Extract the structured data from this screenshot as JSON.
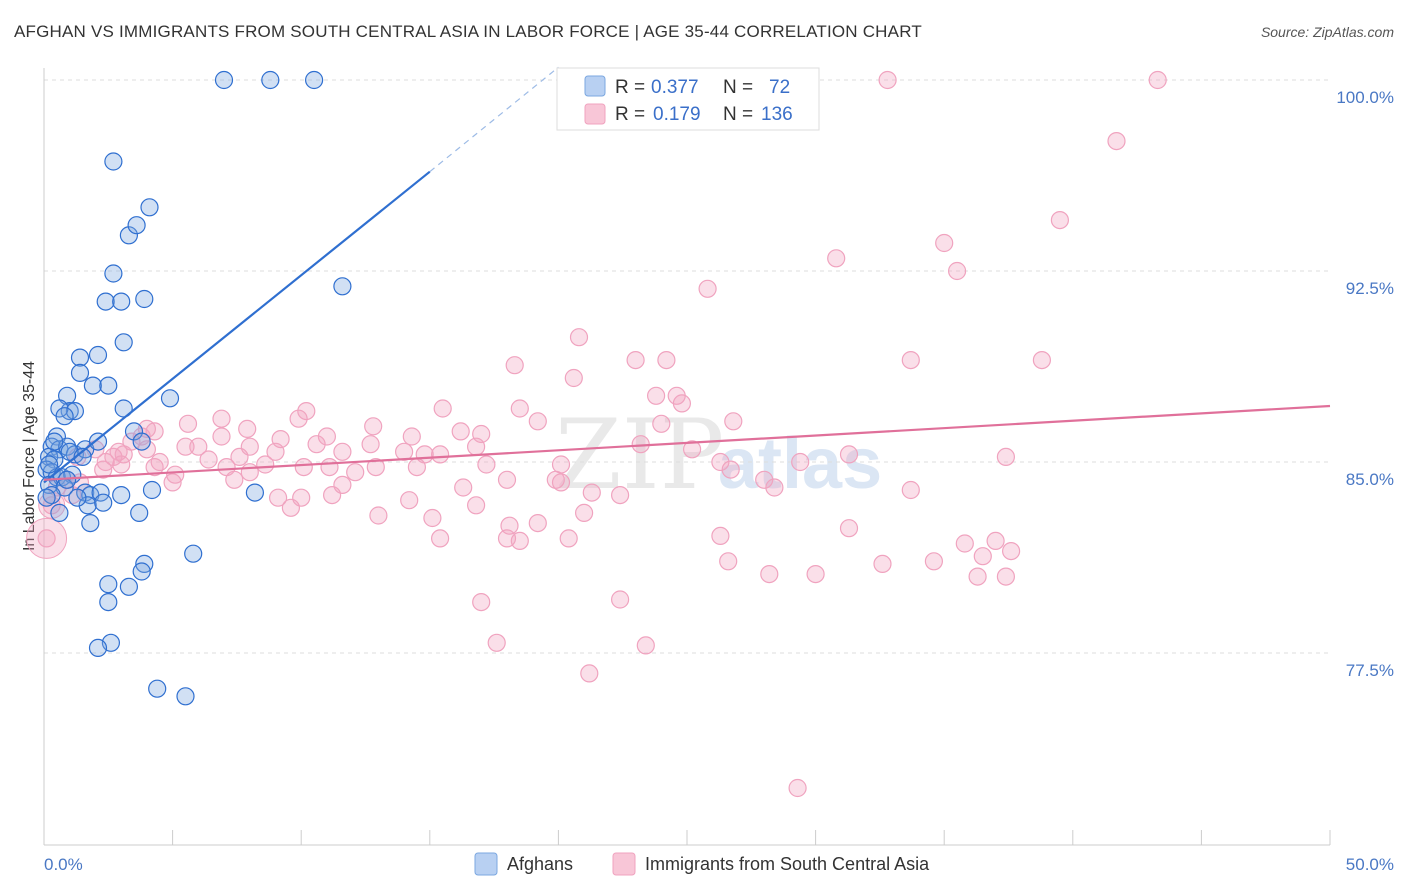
{
  "title": "AFGHAN VS IMMIGRANTS FROM SOUTH CENTRAL ASIA IN LABOR FORCE | AGE 35-44 CORRELATION CHART",
  "source": "Source: ZipAtlas.com",
  "watermark": {
    "part1": "ZIP",
    "part2": "atlas"
  },
  "legend": {
    "row1": {
      "r_label": "R =",
      "r_value": "0.377",
      "n_label": "N =",
      "n_value": "72"
    },
    "row2": {
      "r_label": "R =",
      "r_value": "0.179",
      "n_label": "N =",
      "n_value": "136"
    }
  },
  "bottom_legend": {
    "afghans": "Afghans",
    "immigrants": "Immigrants from South Central Asia"
  },
  "chart_data": {
    "type": "scatter",
    "title": "AFGHAN VS IMMIGRANTS FROM SOUTH CENTRAL ASIA IN LABOR FORCE | AGE 35-44 CORRELATION CHART",
    "xlabel": "",
    "ylabel": "In Labor Force | Age 35-44",
    "x_tick_labels": [
      "0.0%",
      "50.0%"
    ],
    "y_tick_labels": [
      "100.0%",
      "92.5%",
      "85.0%",
      "77.5%"
    ],
    "y_ticks": [
      100.0,
      92.5,
      85.0,
      77.5
    ],
    "xlim": [
      0,
      50
    ],
    "ylim": [
      70.0,
      100.7
    ],
    "grid": true,
    "legend_placement": "top-center",
    "colors": {
      "afghans": "#7ba7e0",
      "afghans_line": "#2f6fd0",
      "immigrants": "#f0a3bf",
      "immigrants_line": "#e0709a"
    },
    "series": [
      {
        "name": "Afghans",
        "R": 0.377,
        "N": 72,
        "trend": {
          "x0": 0.0,
          "y0": 84.2,
          "x1": 15.0,
          "y1": 96.4,
          "dashed_to_x": 20.0,
          "dashed_to_y": 100.5
        },
        "points": [
          [
            7.0,
            100.0
          ],
          [
            8.8,
            100.0
          ],
          [
            10.5,
            100.0
          ],
          [
            2.7,
            96.8
          ],
          [
            4.1,
            95.0
          ],
          [
            3.3,
            93.9
          ],
          [
            3.6,
            94.3
          ],
          [
            2.7,
            92.4
          ],
          [
            2.4,
            91.3
          ],
          [
            3.0,
            91.3
          ],
          [
            3.9,
            91.4
          ],
          [
            11.6,
            91.9
          ],
          [
            3.1,
            89.7
          ],
          [
            2.1,
            89.2
          ],
          [
            1.4,
            89.1
          ],
          [
            1.4,
            88.5
          ],
          [
            1.9,
            88.0
          ],
          [
            2.5,
            88.0
          ],
          [
            0.9,
            87.6
          ],
          [
            1.0,
            87.0
          ],
          [
            1.2,
            87.0
          ],
          [
            0.6,
            87.1
          ],
          [
            3.1,
            87.1
          ],
          [
            4.9,
            87.5
          ],
          [
            0.8,
            86.8
          ],
          [
            0.5,
            86.0
          ],
          [
            3.5,
            86.2
          ],
          [
            3.8,
            85.8
          ],
          [
            0.3,
            85.6
          ],
          [
            0.6,
            85.5
          ],
          [
            0.9,
            85.6
          ],
          [
            1.2,
            85.3
          ],
          [
            1.6,
            85.5
          ],
          [
            2.1,
            85.8
          ],
          [
            0.2,
            85.2
          ],
          [
            0.4,
            85.1
          ],
          [
            1.0,
            85.4
          ],
          [
            1.5,
            85.2
          ],
          [
            0.1,
            84.7
          ],
          [
            0.3,
            84.6
          ],
          [
            0.5,
            84.4
          ],
          [
            0.7,
            84.4
          ],
          [
            1.1,
            84.5
          ],
          [
            0.2,
            84.1
          ],
          [
            0.8,
            84.0
          ],
          [
            0.3,
            83.7
          ],
          [
            0.1,
            83.6
          ],
          [
            1.6,
            83.8
          ],
          [
            1.8,
            83.7
          ],
          [
            2.2,
            83.8
          ],
          [
            3.0,
            83.7
          ],
          [
            4.2,
            83.9
          ],
          [
            8.2,
            83.8
          ],
          [
            1.7,
            83.3
          ],
          [
            2.3,
            83.4
          ],
          [
            0.6,
            83.0
          ],
          [
            3.7,
            83.0
          ],
          [
            1.8,
            82.6
          ],
          [
            5.8,
            81.4
          ],
          [
            3.9,
            81.0
          ],
          [
            3.8,
            80.7
          ],
          [
            3.3,
            80.1
          ],
          [
            2.5,
            80.2
          ],
          [
            2.5,
            79.5
          ],
          [
            2.6,
            77.9
          ],
          [
            2.1,
            77.7
          ],
          [
            4.4,
            76.1
          ],
          [
            5.5,
            75.8
          ],
          [
            0.2,
            84.9
          ],
          [
            0.9,
            84.3
          ],
          [
            1.3,
            83.6
          ],
          [
            0.4,
            85.8
          ]
        ]
      },
      {
        "name": "Immigrants from South Central Asia",
        "R": 0.179,
        "N": 136,
        "trend": {
          "x0": 0.0,
          "y0": 84.3,
          "x1": 50.0,
          "y1": 87.2
        },
        "points": [
          [
            32.8,
            100.0
          ],
          [
            43.3,
            100.0
          ],
          [
            41.7,
            97.6
          ],
          [
            39.5,
            94.5
          ],
          [
            35.0,
            93.6
          ],
          [
            30.8,
            93.0
          ],
          [
            35.5,
            92.5
          ],
          [
            25.8,
            91.8
          ],
          [
            20.8,
            89.9
          ],
          [
            23.0,
            89.0
          ],
          [
            24.2,
            89.0
          ],
          [
            33.7,
            89.0
          ],
          [
            38.8,
            89.0
          ],
          [
            18.3,
            88.8
          ],
          [
            20.6,
            88.3
          ],
          [
            23.8,
            87.6
          ],
          [
            24.6,
            87.6
          ],
          [
            24.8,
            87.3
          ],
          [
            15.5,
            87.1
          ],
          [
            18.5,
            87.1
          ],
          [
            10.2,
            87.0
          ],
          [
            9.9,
            86.7
          ],
          [
            6.9,
            86.7
          ],
          [
            19.2,
            86.6
          ],
          [
            26.8,
            86.6
          ],
          [
            24.0,
            86.5
          ],
          [
            5.6,
            86.5
          ],
          [
            12.8,
            86.4
          ],
          [
            16.2,
            86.2
          ],
          [
            17.0,
            86.1
          ],
          [
            4.0,
            86.3
          ],
          [
            4.3,
            86.2
          ],
          [
            7.9,
            86.3
          ],
          [
            3.8,
            86.0
          ],
          [
            6.9,
            86.0
          ],
          [
            11.0,
            86.0
          ],
          [
            14.3,
            86.0
          ],
          [
            9.2,
            85.9
          ],
          [
            10.6,
            85.7
          ],
          [
            12.7,
            85.7
          ],
          [
            3.4,
            85.8
          ],
          [
            23.2,
            85.7
          ],
          [
            5.5,
            85.6
          ],
          [
            2.0,
            85.5
          ],
          [
            2.9,
            85.4
          ],
          [
            4.0,
            85.5
          ],
          [
            6.0,
            85.6
          ],
          [
            8.0,
            85.6
          ],
          [
            9.0,
            85.4
          ],
          [
            11.6,
            85.4
          ],
          [
            14.0,
            85.4
          ],
          [
            14.8,
            85.3
          ],
          [
            15.4,
            85.3
          ],
          [
            16.8,
            85.6
          ],
          [
            25.2,
            85.5
          ],
          [
            31.3,
            85.3
          ],
          [
            37.4,
            85.2
          ],
          [
            6.4,
            85.1
          ],
          [
            8.6,
            84.9
          ],
          [
            11.1,
            84.8
          ],
          [
            12.9,
            84.8
          ],
          [
            17.2,
            84.9
          ],
          [
            20.1,
            84.9
          ],
          [
            29.4,
            85.0
          ],
          [
            26.3,
            85.0
          ],
          [
            2.4,
            85.0
          ],
          [
            3.0,
            84.9
          ],
          [
            1.3,
            85.2
          ],
          [
            4.3,
            84.8
          ],
          [
            7.1,
            84.8
          ],
          [
            8.0,
            84.6
          ],
          [
            7.4,
            84.3
          ],
          [
            10.1,
            84.8
          ],
          [
            14.5,
            84.8
          ],
          [
            5.1,
            84.5
          ],
          [
            11.6,
            84.1
          ],
          [
            18.0,
            84.3
          ],
          [
            19.9,
            84.3
          ],
          [
            16.3,
            84.0
          ],
          [
            20.1,
            84.2
          ],
          [
            28.0,
            84.3
          ],
          [
            33.7,
            83.9
          ],
          [
            21.3,
            83.8
          ],
          [
            22.4,
            83.7
          ],
          [
            10.0,
            83.6
          ],
          [
            11.2,
            83.7
          ],
          [
            14.2,
            83.5
          ],
          [
            16.8,
            83.3
          ],
          [
            15.1,
            82.8
          ],
          [
            5.0,
            84.2
          ],
          [
            2.3,
            84.7
          ],
          [
            1.4,
            84.2
          ],
          [
            0.9,
            84.3
          ],
          [
            1.1,
            83.7
          ],
          [
            0.5,
            84.0
          ],
          [
            0.3,
            83.3
          ],
          [
            13.0,
            82.9
          ],
          [
            9.6,
            83.2
          ],
          [
            18.1,
            82.5
          ],
          [
            19.2,
            82.6
          ],
          [
            21.0,
            83.0
          ],
          [
            20.4,
            82.0
          ],
          [
            26.3,
            82.1
          ],
          [
            35.8,
            81.8
          ],
          [
            37.0,
            81.9
          ],
          [
            37.6,
            81.5
          ],
          [
            36.5,
            81.3
          ],
          [
            36.3,
            80.5
          ],
          [
            37.4,
            80.5
          ],
          [
            28.2,
            80.6
          ],
          [
            30.0,
            80.6
          ],
          [
            34.6,
            81.1
          ],
          [
            26.6,
            81.1
          ],
          [
            15.4,
            82.0
          ],
          [
            18.0,
            82.0
          ],
          [
            18.5,
            81.9
          ],
          [
            17.0,
            79.5
          ],
          [
            22.4,
            79.6
          ],
          [
            17.6,
            77.9
          ],
          [
            23.4,
            77.8
          ],
          [
            21.2,
            76.7
          ],
          [
            32.6,
            81.0
          ],
          [
            31.3,
            82.4
          ],
          [
            28.4,
            84.0
          ],
          [
            26.7,
            84.7
          ],
          [
            7.6,
            85.2
          ],
          [
            4.5,
            85.0
          ],
          [
            3.1,
            85.3
          ],
          [
            2.7,
            85.2
          ],
          [
            12.1,
            84.6
          ],
          [
            9.1,
            83.6
          ],
          [
            29.3,
            72.2
          ],
          [
            0.1,
            82.0
          ]
        ]
      }
    ]
  }
}
